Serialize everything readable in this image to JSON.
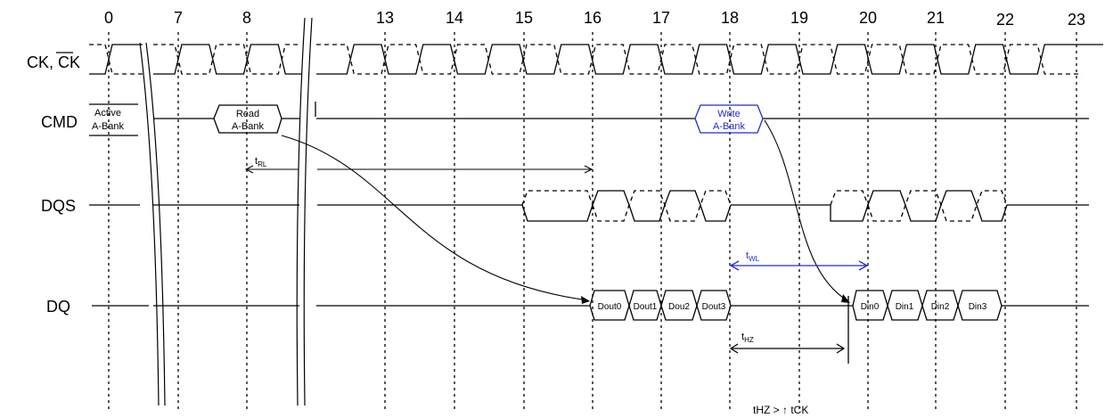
{
  "cycles": [
    "0",
    "7",
    "8",
    "13",
    "14",
    "15",
    "16",
    "17",
    "18",
    "19",
    "20",
    "21",
    "22",
    "23"
  ],
  "signals": {
    "ck": {
      "label": "CK, ",
      "label_bar": "CK"
    },
    "cmd": {
      "label": "CMD"
    },
    "dqs": {
      "label": "DQS"
    },
    "dq": {
      "label": "DQ"
    }
  },
  "commands": {
    "active": {
      "line1": "Active",
      "line2": "A-Bank"
    },
    "read": {
      "line1": "Read",
      "line2": "A-Bank"
    },
    "write": {
      "line1": "Write",
      "line2": "A-Bank"
    }
  },
  "dout": [
    "Dout0",
    "Dout1",
    "Dou2",
    "Dout3"
  ],
  "din": [
    "Din0",
    "Din1",
    "Din2",
    "Din3"
  ],
  "timing": {
    "trl": {
      "main": "t",
      "sub": "RL"
    },
    "twl": {
      "main": "t",
      "sub": "WL"
    },
    "thz": {
      "main": "t",
      "sub": "HZ"
    }
  },
  "note": "tHZ > ↑ tCK",
  "colors": {
    "ink": "#000000",
    "write": "#1f2fd0"
  }
}
